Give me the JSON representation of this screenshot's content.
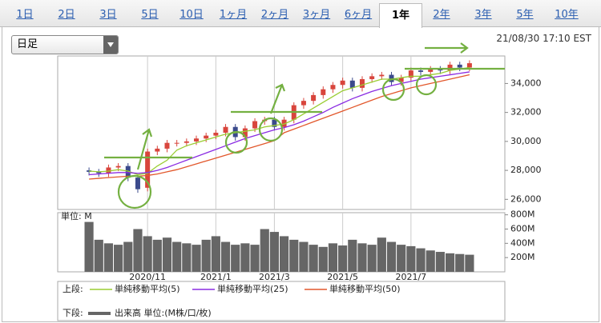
{
  "tabs": [
    "1日",
    "2日",
    "3日",
    "5日",
    "10日",
    "1ヶ月",
    "2ヶ月",
    "3ヶ月",
    "6ヶ月",
    "1年",
    "2年",
    "3年",
    "5年",
    "10年"
  ],
  "active_tab": 9,
  "dropdown": "日足",
  "timestamp": "21/08/30 17:10 EST",
  "chart_data": [
    {
      "type": "candlestick",
      "legend_label": "上段:",
      "categories": [
        null,
        null,
        null,
        null,
        null,
        null,
        "2020/11",
        null,
        null,
        null,
        null,
        null,
        null,
        "2021/1",
        null,
        null,
        null,
        null,
        null,
        "2021/3",
        null,
        null,
        null,
        null,
        null,
        null,
        "2021/5",
        null,
        null,
        null,
        null,
        null,
        null,
        "2021/7",
        null,
        null,
        null,
        null,
        null,
        null
      ],
      "open": [
        28000,
        27900,
        27800,
        28200,
        28300,
        27500,
        26800,
        29300,
        29500,
        29900,
        29900,
        30000,
        30200,
        30400,
        30600,
        31000,
        30300,
        30900,
        31400,
        31500,
        31000,
        31500,
        32500,
        32800,
        33200,
        33600,
        33900,
        34200,
        33700,
        34300,
        34500,
        34600,
        34100,
        34400,
        34900,
        34800,
        35000,
        34900,
        35300,
        35100
      ],
      "high": [
        28200,
        28100,
        28400,
        28500,
        28500,
        27700,
        29500,
        29700,
        30100,
        30100,
        30200,
        30400,
        30600,
        30800,
        31200,
        31200,
        31100,
        31600,
        31700,
        31700,
        31700,
        32700,
        33000,
        33400,
        33800,
        34100,
        34400,
        34400,
        34500,
        34700,
        34800,
        34800,
        34600,
        35100,
        35100,
        35200,
        35200,
        35500,
        35500,
        35600
      ],
      "low": [
        27650,
        27550,
        27550,
        27950,
        27250,
        26450,
        26550,
        29050,
        29250,
        29650,
        29650,
        29750,
        29950,
        30150,
        30350,
        30050,
        30050,
        30650,
        31150,
        30750,
        30750,
        31250,
        32250,
        32550,
        32950,
        33350,
        33650,
        33450,
        33450,
        34050,
        34250,
        33850,
        33850,
        34150,
        34550,
        34550,
        34650,
        34650,
        34850,
        34850
      ],
      "close": [
        27900,
        27800,
        28200,
        28300,
        27500,
        26700,
        29300,
        29500,
        29900,
        29900,
        30000,
        30200,
        30400,
        30600,
        31000,
        30300,
        30900,
        31400,
        31500,
        31000,
        31500,
        32500,
        32800,
        33200,
        33600,
        33900,
        34200,
        33700,
        34300,
        34500,
        34600,
        34100,
        34400,
        34900,
        34800,
        35000,
        34900,
        35300,
        35100,
        35400
      ],
      "up_color": "#d8453c",
      "down_color": "#3b4a8c",
      "series": [
        {
          "name": "単純移動平均(5)",
          "color": "#9acd32",
          "values": [
            27950,
            27900,
            27950,
            28050,
            27950,
            27700,
            27800,
            28300,
            28700,
            29400,
            29700,
            29900,
            30100,
            30300,
            30500,
            30600,
            30700,
            30800,
            31000,
            31100,
            31200,
            31500,
            31900,
            32300,
            32700,
            33100,
            33500,
            33700,
            33900,
            34100,
            34300,
            34300,
            34400,
            34500,
            34500,
            34600,
            34700,
            34900,
            35000,
            35100
          ]
        },
        {
          "name": "単純移動平均(25)",
          "color": "#8a2be2",
          "values": [
            27700,
            27750,
            27800,
            27850,
            27850,
            27800,
            27850,
            28000,
            28200,
            28450,
            28700,
            28950,
            29200,
            29450,
            29700,
            29950,
            30200,
            30400,
            30600,
            30800,
            30950,
            31150,
            31400,
            31700,
            32000,
            32350,
            32650,
            32950,
            33200,
            33450,
            33650,
            33850,
            34000,
            34150,
            34300,
            34400,
            34500,
            34600,
            34700,
            34800
          ]
        },
        {
          "name": "単純移動平均(50)",
          "color": "#e2572b",
          "values": [
            27400,
            27450,
            27500,
            27550,
            27600,
            27600,
            27650,
            27750,
            27900,
            28050,
            28250,
            28450,
            28650,
            28850,
            29050,
            29250,
            29450,
            29650,
            29850,
            30050,
            30600,
            30850,
            31100,
            31350,
            31600,
            31850,
            32100,
            32350,
            32600,
            32850,
            33100,
            33300,
            33500,
            33700,
            33850,
            34000,
            34150,
            34300,
            34450,
            34600
          ]
        }
      ],
      "ylim": [
        25300,
        35900
      ],
      "yticks": [
        {
          "value": 26000,
          "label": "26,000"
        },
        {
          "value": 28000,
          "label": "28,000"
        },
        {
          "value": 30000,
          "label": "30,000"
        },
        {
          "value": 32000,
          "label": "32,000"
        },
        {
          "value": 34000,
          "label": "34,000"
        }
      ]
    },
    {
      "type": "bar",
      "legend_label": "下段:",
      "ylabel": "単位: M",
      "series": [
        {
          "name": "出来高 単位:(M株/口/枚)",
          "color": "#666666",
          "values": [
            700,
            450,
            400,
            380,
            420,
            600,
            500,
            450,
            480,
            420,
            400,
            380,
            450,
            500,
            420,
            380,
            400,
            380,
            600,
            560,
            500,
            450,
            420,
            380,
            350,
            400,
            370,
            450,
            400,
            380,
            480,
            420,
            380,
            360,
            330,
            300,
            280,
            260,
            250,
            240
          ]
        }
      ],
      "ylim": [
        0,
        830
      ],
      "yticks": [
        {
          "value": 200,
          "label": "200M"
        },
        {
          "value": 400,
          "label": "400M"
        },
        {
          "value": 600,
          "label": "600M"
        },
        {
          "value": 800,
          "label": "800M"
        }
      ]
    }
  ]
}
